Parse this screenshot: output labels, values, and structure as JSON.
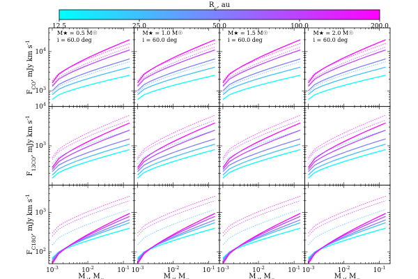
{
  "colorbar": {
    "label": "R_c, au",
    "ticks": [
      "12.5",
      "25.0",
      "50.0",
      "100.0",
      "200.0"
    ],
    "color_min": "#00ffff",
    "color_max": "#ff00ff"
  },
  "axes": {
    "xlabel": "M_d, M_☉",
    "ylabels": [
      "F_CO, mJy km s^-1",
      "F_13CO, mJy km s^-1",
      "F_C18O, mJy km s^-1"
    ],
    "xticks": [
      "10^-3",
      "10^-2",
      "10^-1"
    ]
  },
  "chart_data": {
    "type": "line",
    "layout": "3x4 grid of panels",
    "xscale": "log",
    "yscale": "log",
    "xlim": [
      0.0008,
      0.2
    ],
    "line_styles": {
      "solid": "set 1",
      "dotted": "set 2"
    },
    "columns": [
      {
        "annotation": "M★ = 0.5 M☉",
        "inclination": "i = 60.0 deg"
      },
      {
        "annotation": "M★ = 1.0 M☉",
        "inclination": "i = 60.0 deg"
      },
      {
        "annotation": "M★ = 1.5 M☉",
        "inclination": "i = 60.0 deg"
      },
      {
        "annotation": "M★ = 2.0 M☉",
        "inclination": "i = 60.0 deg"
      }
    ],
    "rows": [
      {
        "ylabel": "F_CO, mJy km s^-1",
        "ylim": [
          400,
          40000
        ],
        "yticks": [
          "10^3",
          "10^4"
        ],
        "series": [
          {
            "Rc": 12.5,
            "style": "solid",
            "y_start": 600,
            "y_end": 2500
          },
          {
            "Rc": 25.0,
            "style": "solid",
            "y_start": 800,
            "y_end": 4000
          },
          {
            "Rc": 50.0,
            "style": "solid",
            "y_start": 1000,
            "y_end": 6500
          },
          {
            "Rc": 100.0,
            "style": "solid",
            "y_start": 1300,
            "y_end": 11000
          },
          {
            "Rc": 200.0,
            "style": "solid",
            "y_start": 1600,
            "y_end": 20000
          },
          {
            "Rc": 25.0,
            "style": "dotted",
            "y_start": 900,
            "y_end": 5500
          },
          {
            "Rc": 100.0,
            "style": "dotted",
            "y_start": 1400,
            "y_end": 13000
          },
          {
            "Rc": 200.0,
            "style": "dotted",
            "y_start": 1800,
            "y_end": 16000
          }
        ]
      },
      {
        "ylabel": "F_13CO, mJy km s^-1",
        "ylim": [
          100,
          10000
        ],
        "yticks": [
          "10^3",
          "10^4"
        ],
        "series": [
          {
            "Rc": 12.5,
            "style": "solid",
            "y_start": 150,
            "y_end": 800
          },
          {
            "Rc": 25.0,
            "style": "solid",
            "y_start": 180,
            "y_end": 1100
          },
          {
            "Rc": 50.0,
            "style": "solid",
            "y_start": 220,
            "y_end": 1500
          },
          {
            "Rc": 100.0,
            "style": "solid",
            "y_start": 250,
            "y_end": 2500
          },
          {
            "Rc": 200.0,
            "style": "solid",
            "y_start": 280,
            "y_end": 3800
          },
          {
            "Rc": 25.0,
            "style": "dotted",
            "y_start": 350,
            "y_end": 2500
          },
          {
            "Rc": 100.0,
            "style": "dotted",
            "y_start": 450,
            "y_end": 4500
          },
          {
            "Rc": 200.0,
            "style": "dotted",
            "y_start": 500,
            "y_end": 6000
          }
        ]
      },
      {
        "ylabel": "F_C18O, mJy km s^-1",
        "ylim": [
          50,
          5000
        ],
        "yticks": [
          "10^2",
          "10^3"
        ],
        "series": [
          {
            "Rc": 12.5,
            "style": "solid",
            "y_start": 70,
            "y_end": 400
          },
          {
            "Rc": 25.0,
            "style": "solid",
            "y_start": 65,
            "y_end": 550
          },
          {
            "Rc": 50.0,
            "style": "solid",
            "y_start": 60,
            "y_end": 650
          },
          {
            "Rc": 100.0,
            "style": "solid",
            "y_start": 55,
            "y_end": 800
          },
          {
            "Rc": 200.0,
            "style": "solid",
            "y_start": 50,
            "y_end": 950
          },
          {
            "Rc": 25.0,
            "style": "dotted",
            "y_start": 150,
            "y_end": 1200
          },
          {
            "Rc": 100.0,
            "style": "dotted",
            "y_start": 250,
            "y_end": 2000
          },
          {
            "Rc": 200.0,
            "style": "dotted",
            "y_start": 300,
            "y_end": 2600
          }
        ]
      }
    ]
  }
}
